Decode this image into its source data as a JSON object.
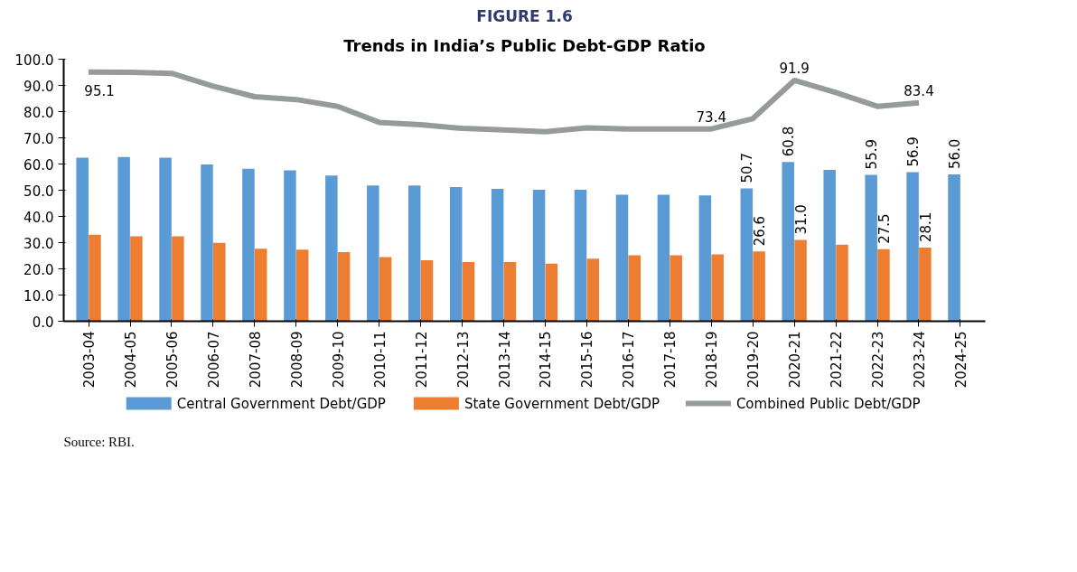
{
  "chart_data": {
    "type": "bar",
    "title": "FIGURE 1.6",
    "subtitle": "Trends in India’s Public Debt-GDP Ratio",
    "categories": [
      "2003-04",
      "2004-05",
      "2005-06",
      "2006-07",
      "2007-08",
      "2008-09",
      "2009-10",
      "2010-11",
      "2011-12",
      "2012-13",
      "2013-14",
      "2014-15",
      "2015-16",
      "2016-17",
      "2017-18",
      "2018-19",
      "2019-20",
      "2020-21",
      "2021-22",
      "2022-23",
      "2023-24",
      "2024-25"
    ],
    "series": [
      {
        "name": "Central Government Debt/GDP",
        "color": "#5b9bd5",
        "values": [
          62.4,
          62.7,
          62.4,
          59.8,
          58.2,
          57.6,
          55.6,
          51.8,
          51.8,
          51.2,
          50.5,
          50.2,
          50.2,
          48.3,
          48.3,
          48.0,
          50.7,
          60.8,
          57.8,
          55.9,
          56.9,
          56.0
        ],
        "value_labels": [
          null,
          null,
          null,
          null,
          null,
          null,
          null,
          null,
          null,
          null,
          null,
          null,
          null,
          null,
          null,
          null,
          "50.7",
          "60.8",
          null,
          "55.9",
          "56.9",
          "56.0"
        ]
      },
      {
        "name": "State Government Debt/GDP",
        "color": "#ed7d31",
        "values": [
          33.0,
          32.4,
          32.4,
          29.9,
          27.7,
          27.3,
          26.4,
          24.5,
          23.3,
          22.6,
          22.6,
          22.0,
          23.9,
          25.2,
          25.2,
          25.5,
          26.6,
          31.0,
          29.2,
          27.5,
          28.1,
          null
        ],
        "value_labels": [
          null,
          null,
          null,
          null,
          null,
          null,
          null,
          null,
          null,
          null,
          null,
          null,
          null,
          null,
          null,
          null,
          "26.6",
          "31.0",
          null,
          "27.5",
          "28.1",
          null
        ]
      },
      {
        "name": "Combined Public Debt/GDP",
        "type": "line",
        "color": "#959b9b",
        "values": [
          95.1,
          95.0,
          94.6,
          89.7,
          85.7,
          84.6,
          82.0,
          75.9,
          75.0,
          73.6,
          73.0,
          72.3,
          73.8,
          73.4,
          73.4,
          73.4,
          77.3,
          91.9,
          87.3,
          82.0,
          83.4,
          null
        ],
        "value_labels": [
          "95.1",
          null,
          null,
          null,
          null,
          null,
          null,
          null,
          null,
          null,
          null,
          null,
          null,
          null,
          null,
          "73.4",
          null,
          "91.9",
          null,
          null,
          "83.4",
          null
        ]
      }
    ],
    "ylim": [
      0,
      100
    ],
    "yticks": [
      {
        "value": 0,
        "label": "0.0"
      },
      {
        "value": 10,
        "label": "10.0"
      },
      {
        "value": 20,
        "label": "20.0"
      },
      {
        "value": 30,
        "label": "30.0"
      },
      {
        "value": 40,
        "label": "40.0"
      },
      {
        "value": 50,
        "label": "50.0"
      },
      {
        "value": 60,
        "label": "60.0"
      },
      {
        "value": 70,
        "label": "70.0"
      },
      {
        "value": 80,
        "label": "80.0"
      },
      {
        "value": 90,
        "label": "90.0"
      },
      {
        "value": 100,
        "label": "100.0"
      }
    ],
    "grid": false,
    "legend": "bottom",
    "line_style": "solid",
    "marker": "none",
    "annotations": [
      "Source: RBI."
    ]
  }
}
